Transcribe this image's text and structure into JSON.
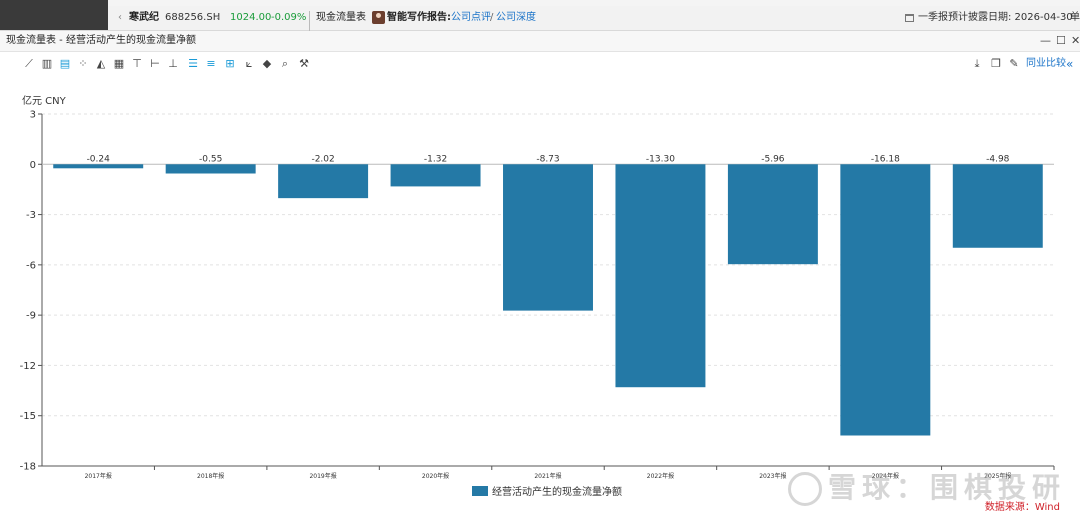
{
  "header": {
    "stock_name": "寒武纪",
    "stock_code": "688256.SH",
    "price": "1024.00",
    "change": "-0.09%",
    "report_name": "现金流量表",
    "ai_label": "智能写作报告:",
    "link1": "公司点评",
    "slash": "/",
    "link2": "公司深度",
    "disclosure": "一季报预计披露日期: 2026-04-30",
    "trail": "单"
  },
  "titlebar": {
    "title": "现金流量表 - 经营活动产生的现金流量净额",
    "minimize": "—",
    "maximize": "☐",
    "close": "✕"
  },
  "toolbar": {
    "compare_label": "同业比较",
    "collapse": "«",
    "icons": [
      "line-chart-icon",
      "bar-chart-icon",
      "column-chart-icon",
      "scatter-icon",
      "area-chart-icon",
      "stacked-bar-icon",
      "align-top-icon",
      "align-middle-icon",
      "align-bottom-icon",
      "list-icon",
      "list-indent-icon",
      "grid-icon",
      "trend-icon",
      "fill-icon",
      "zoom-icon",
      "wrench-icon"
    ],
    "right_icons": [
      "download-icon",
      "copy-icon",
      "edit-icon"
    ]
  },
  "chart_data": {
    "type": "bar",
    "unit_label": "亿元  CNY",
    "categories": [
      "2017年报",
      "2018年报",
      "2019年报",
      "2020年报",
      "2021年报",
      "2022年报",
      "2023年报",
      "2024年报",
      "2025年报"
    ],
    "series": [
      {
        "name": "经营活动产生的现金流量净额",
        "values": [
          -0.24,
          -0.55,
          -2.02,
          -1.32,
          -8.73,
          -13.3,
          -5.96,
          -16.18,
          -4.98
        ],
        "color": "#2479a6"
      }
    ],
    "data_labels": [
      "-0.24",
      "-0.55",
      "-2.02",
      "-1.32",
      "-8.73",
      "-13.30",
      "-5.96",
      "-16.18",
      "-4.98"
    ],
    "y_ticks": [
      3,
      0,
      -3,
      -6,
      -9,
      -12,
      -15,
      -18
    ],
    "ylim": [
      -18,
      3
    ],
    "grid": true,
    "legend_position": "bottom"
  },
  "source": "数据来源：Wind",
  "watermark": "雪球：围棋投研"
}
